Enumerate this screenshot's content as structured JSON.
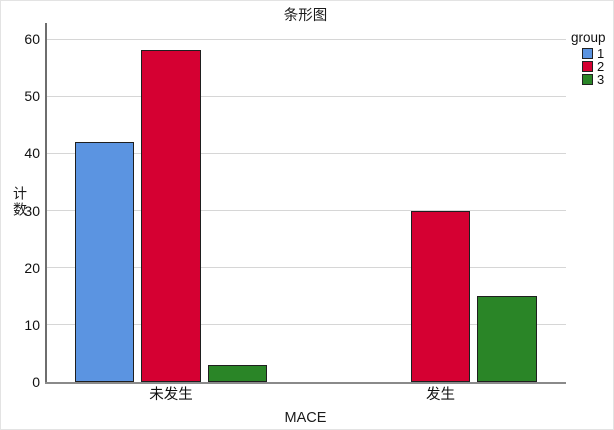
{
  "chart_data": {
    "type": "bar",
    "title": "条形图",
    "xlabel": "MACE",
    "ylabel": "计数",
    "categories": [
      "未发生",
      "发生"
    ],
    "series": [
      {
        "name": "1",
        "color": "#5B94E1",
        "values": [
          42,
          0
        ]
      },
      {
        "name": "2",
        "color": "#D50032",
        "values": [
          58,
          30
        ]
      },
      {
        "name": "3",
        "color": "#2A8527",
        "values": [
          3,
          15
        ]
      }
    ],
    "ylim": [
      0,
      60
    ],
    "ytick_step": 10,
    "grid": true,
    "legend_title": "group",
    "legend_position": "top-right"
  },
  "colors": {
    "background": "#ffffff",
    "gridline": "#d6d6d6",
    "axis": "#8a8a8a",
    "y_axis": "#6e6e6e",
    "bar_border": "#1f1f1f",
    "swatch_border": "#222222",
    "text": "#111111"
  }
}
